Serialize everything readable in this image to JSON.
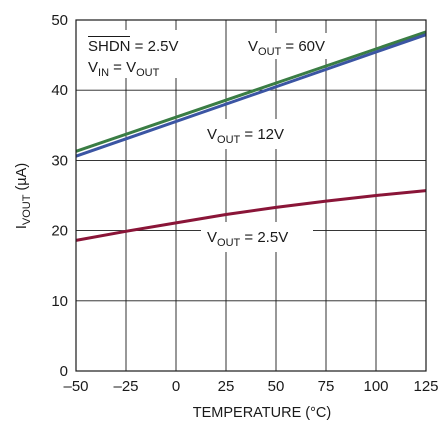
{
  "chart_data": {
    "type": "line",
    "xlabel": "TEMPERATURE (°C)",
    "ylabel": {
      "main": "I",
      "sub": "VOUT",
      "unit": " (µA)"
    },
    "xlim": [
      -50,
      125
    ],
    "ylim": [
      0,
      50
    ],
    "x_ticks": [
      "–50",
      "–25",
      "0",
      "25",
      "50",
      "75",
      "100",
      "125"
    ],
    "y_ticks": [
      "0",
      "10",
      "20",
      "30",
      "40",
      "50"
    ],
    "grid": true,
    "series": [
      {
        "name": "VOUT = 60V",
        "label": {
          "main": "V",
          "sub": "OUT",
          "rest": " = 60V"
        },
        "color": "#3a7d44",
        "x": [
          -50,
          125
        ],
        "y": [
          31.3,
          48.3
        ]
      },
      {
        "name": "VOUT = 12V",
        "label": {
          "main": "V",
          "sub": "OUT",
          "rest": " = 12V"
        },
        "color": "#3b55a3",
        "x": [
          -50,
          125
        ],
        "y": [
          30.6,
          47.9
        ]
      },
      {
        "name": "VOUT = 2.5V",
        "label": {
          "main": "V",
          "sub": "OUT",
          "rest": " = 2.5V"
        },
        "color": "#8a1538",
        "x": [
          -50,
          -25,
          0,
          25,
          50,
          75,
          100,
          125
        ],
        "y": [
          18.6,
          19.9,
          21.1,
          22.3,
          23.3,
          24.2,
          25.0,
          25.7
        ]
      }
    ],
    "conditions": {
      "line1": {
        "main": "SHDN",
        "rest": " = 2.5V"
      },
      "line2": {
        "main": "V",
        "sub": "IN",
        "mid": " = V",
        "sub2": "OUT"
      }
    }
  }
}
